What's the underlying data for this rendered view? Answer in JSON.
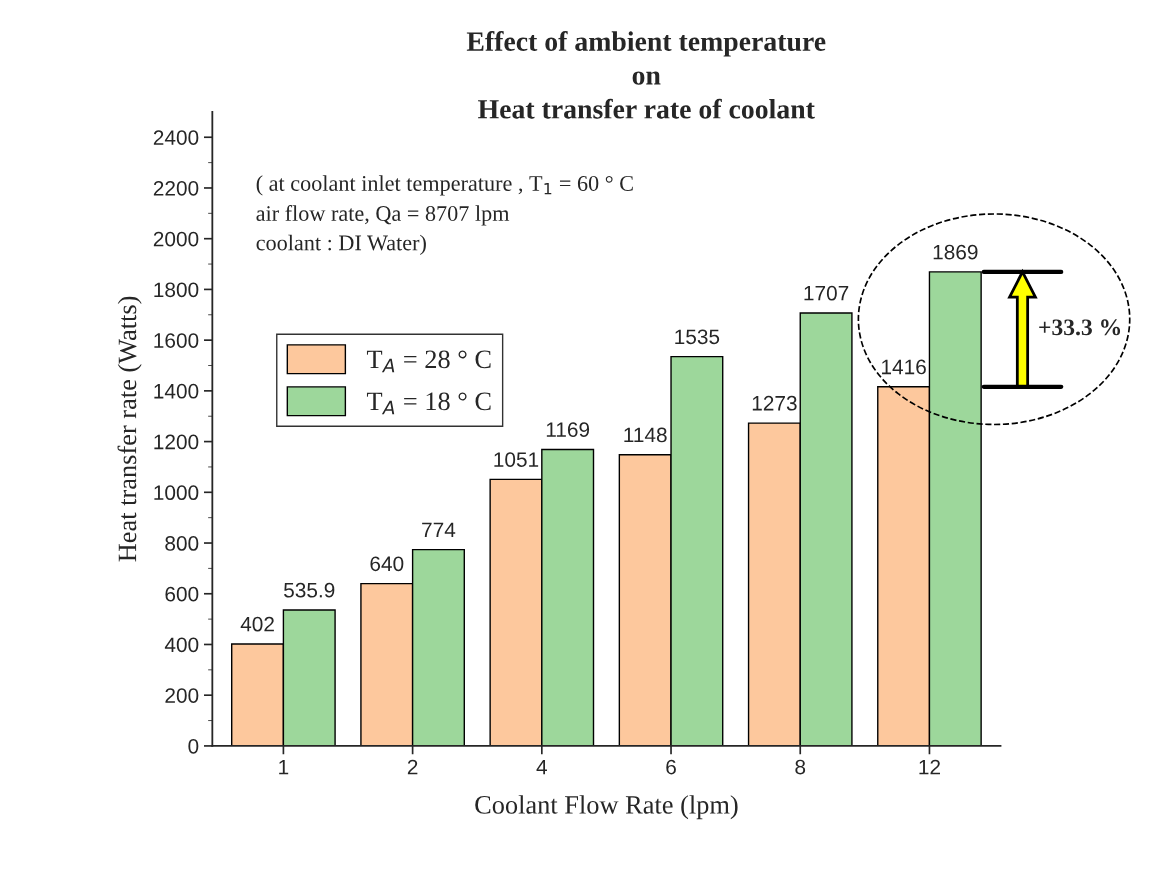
{
  "chart_data": {
    "type": "bar",
    "title": "Effect of ambient temperature\non\nHeat transfer rate of coolant",
    "xlabel": "Coolant Flow Rate (lpm)",
    "ylabel": "Heat transfer rate (Watts)",
    "categories": [
      "1",
      "2",
      "4",
      "6",
      "8",
      "12"
    ],
    "series": [
      {
        "name": "T$_{A}$ = 28 ° C",
        "color": "#fdc89d",
        "values": [
          402,
          640,
          1051,
          1148,
          1273,
          1416
        ]
      },
      {
        "name": "T$_{A}$ = 18 ° C",
        "color": "#9dd79b",
        "values": [
          535.9,
          774,
          1169,
          1535,
          1707,
          1869
        ]
      }
    ],
    "ylim": [
      0,
      2500
    ],
    "yticks": [
      0,
      200,
      400,
      600,
      800,
      1000,
      1200,
      1400,
      1600,
      1800,
      2000,
      2200,
      2400
    ],
    "data_labels": true,
    "legend": "top left",
    "grid": false,
    "annotations": [
      "( at coolant inlet temperature , T$_{1}$ = 60 ° C\nair flow rate, Qa = 8707 lpm\ncoolant : DI Water)",
      "+33.3 %"
    ]
  }
}
